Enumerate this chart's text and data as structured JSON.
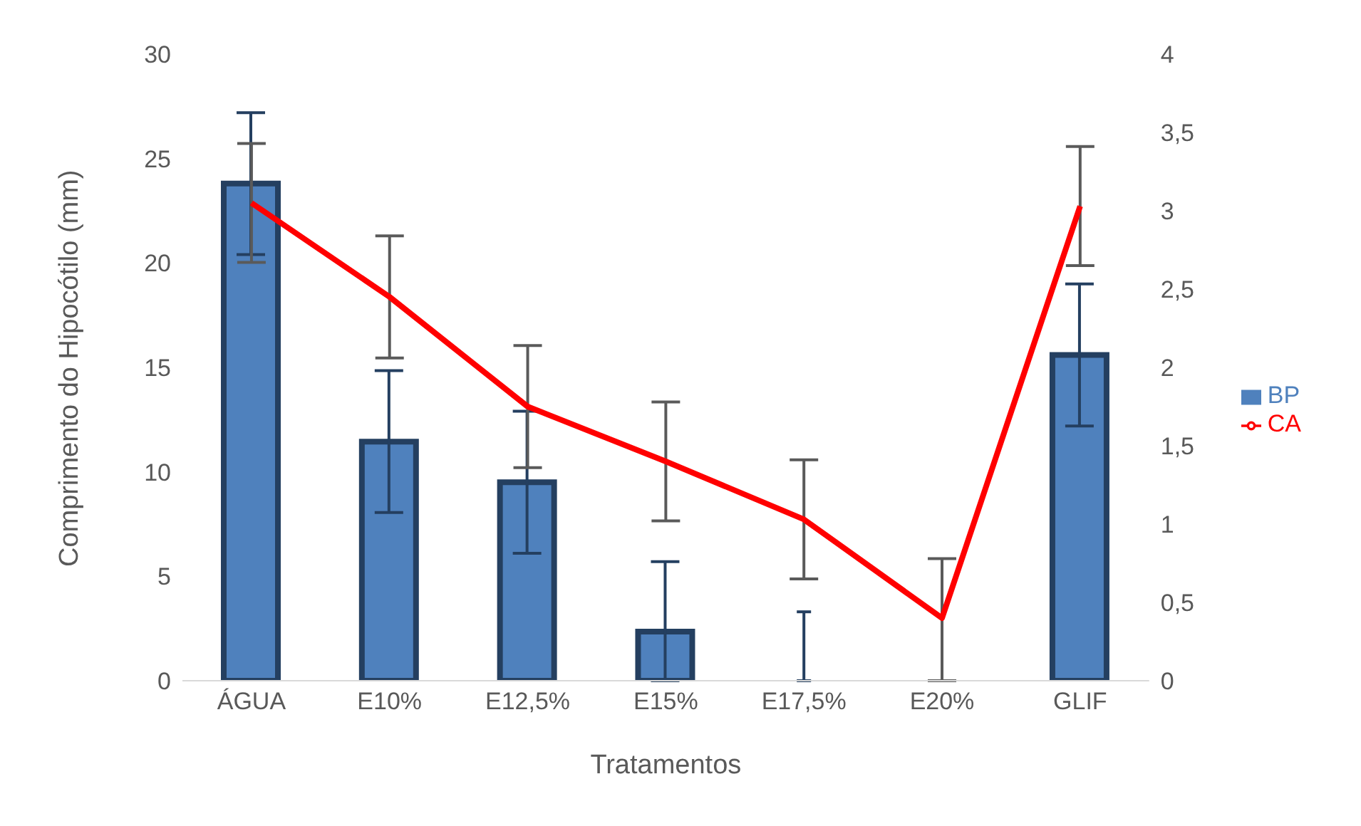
{
  "chart_data": {
    "type": "bar",
    "xlabel": "Tratamentos",
    "ylabel": "Comprimento do Hipocótilo (mm)",
    "categories": [
      "ÁGUA",
      "E10%",
      "E12,5%",
      "E15%",
      "E17,5%",
      "E20%",
      "GLIF"
    ],
    "series": [
      {
        "name": "BP",
        "color": "#4f81bd",
        "values": [
          23.8,
          11.45,
          9.5,
          2.35,
          0,
          0,
          15.6
        ],
        "errors": [
          3.4,
          3.4,
          3.4,
          [
            0,
            5.7
          ],
          [
            0,
            3.3
          ],
          null,
          3.4
        ]
      },
      {
        "name": "CA",
        "type": "line",
        "axis": "y2",
        "color": "#ff0000",
        "values": [
          3.05,
          2.45,
          1.75,
          1.4,
          1.03,
          0.4,
          3.03
        ],
        "errors": [
          0.38,
          0.39,
          0.39,
          0.38,
          0.38,
          [
            0,
            0.78
          ],
          0.38
        ]
      }
    ],
    "ylim": [
      0,
      30
    ],
    "yticks": [
      0,
      5,
      10,
      15,
      20,
      25,
      30
    ],
    "y2lim": [
      0,
      4
    ],
    "y2ticks": [
      0,
      {
        "value": 0.5,
        "label": "0,5"
      },
      1,
      {
        "value": 1.5,
        "label": "1,5"
      },
      2,
      {
        "value": 2.5,
        "label": "2,5"
      },
      3,
      {
        "value": 3.5,
        "label": "3,5"
      },
      4
    ],
    "grid": false,
    "legend": "right",
    "marker": "none"
  }
}
